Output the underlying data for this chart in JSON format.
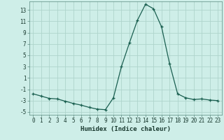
{
  "xlabel": "Humidex (Indice chaleur)",
  "background_color": "#ceeee8",
  "grid_color": "#aed4cc",
  "line_color": "#1a5f50",
  "marker_color": "#1a5f50",
  "x_values": [
    0,
    1,
    2,
    3,
    4,
    5,
    6,
    7,
    8,
    9,
    10,
    11,
    12,
    13,
    14,
    15,
    16,
    17,
    18,
    19,
    20,
    21,
    22,
    23
  ],
  "y_values": [
    -1.8,
    -2.2,
    -2.6,
    -2.7,
    -3.1,
    -3.5,
    -3.8,
    -4.2,
    -4.5,
    -4.6,
    -2.5,
    3.0,
    7.2,
    11.2,
    14.0,
    13.2,
    10.0,
    3.5,
    -1.8,
    -2.5,
    -2.8,
    -2.7,
    -2.9,
    -3.0
  ],
  "ylim": [
    -5.5,
    14.5
  ],
  "xlim": [
    -0.5,
    23.5
  ],
  "yticks": [
    -5,
    -3,
    -1,
    1,
    3,
    5,
    7,
    9,
    11,
    13
  ],
  "ytick_labels": [
    "-5",
    "-3",
    "-1",
    "1",
    "3",
    "5",
    "7",
    "9",
    "11",
    "13"
  ],
  "xticks": [
    0,
    1,
    2,
    3,
    4,
    5,
    6,
    7,
    8,
    9,
    10,
    11,
    12,
    13,
    14,
    15,
    16,
    17,
    18,
    19,
    20,
    21,
    22,
    23
  ],
  "xtick_labels": [
    "0",
    "1",
    "2",
    "3",
    "4",
    "5",
    "6",
    "7",
    "8",
    "9",
    "10",
    "11",
    "12",
    "13",
    "14",
    "15",
    "16",
    "17",
    "18",
    "19",
    "20",
    "21",
    "22",
    "23"
  ],
  "tick_fontsize": 5.5,
  "xlabel_fontsize": 6.5
}
